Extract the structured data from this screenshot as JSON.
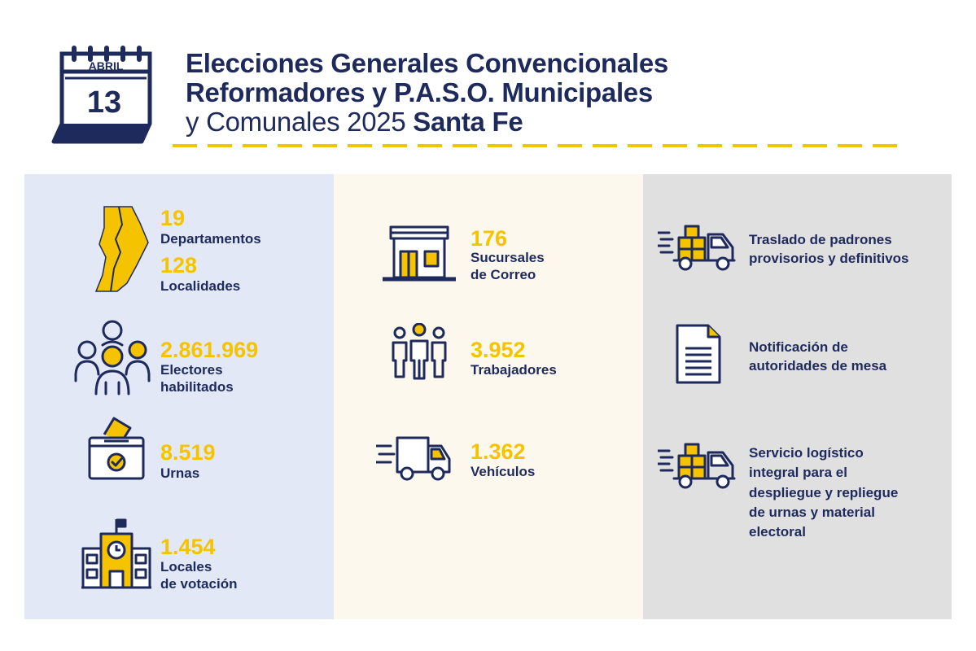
{
  "header": {
    "calendar": {
      "month": "ABRIL",
      "day": "13"
    },
    "title": {
      "line1": "Elecciones Generales Convencionales",
      "line2": "Reformadores y P.A.S.O. Municipales",
      "line3_regular": "y Comunales 2025 ",
      "line3_bold": "Santa Fe"
    }
  },
  "colors": {
    "navy": "#1f2a5c",
    "yellow": "#f6c300",
    "panel_blue": "#e3e8f6",
    "panel_cream": "#fcf8ee",
    "panel_gray": "#e0e0e1"
  },
  "column1": {
    "territory": {
      "icon": "santa-fe-map-icon",
      "num1": "19",
      "label1": "Departamentos",
      "num2": "128",
      "label2": "Localidades"
    },
    "voters": {
      "icon": "people-group-icon",
      "num": "2.861.969",
      "label_line1": "Electores",
      "label_line2": "habilitados"
    },
    "ballot_boxes": {
      "icon": "ballot-box-icon",
      "num": "8.519",
      "label": "Urnas"
    },
    "polling_places": {
      "icon": "school-building-icon",
      "num": "1.454",
      "label_line1": "Locales",
      "label_line2": "de votación"
    }
  },
  "column2": {
    "branches": {
      "icon": "post-office-icon",
      "num": "176",
      "label_line1": "Sucursales",
      "label_line2": "de Correo"
    },
    "workers": {
      "icon": "workers-icon",
      "num": "3.952",
      "label": "Trabajadores"
    },
    "vehicles": {
      "icon": "delivery-van-icon",
      "num": "1.362",
      "label": "Vehículos"
    }
  },
  "column3": {
    "transfer": {
      "icon": "cargo-truck-icon",
      "line1": "Traslado de padrones",
      "line2": "provisorios y definitivos"
    },
    "notification": {
      "icon": "document-icon",
      "line1": "Notificación de",
      "line2": "autoridades de mesa"
    },
    "logistics": {
      "icon": "cargo-truck-icon",
      "line1": "Servicio logístico",
      "line2": "integral para el",
      "line3": "despliegue y repliegue",
      "line4": "de urnas y material",
      "line5": "electoral"
    }
  }
}
